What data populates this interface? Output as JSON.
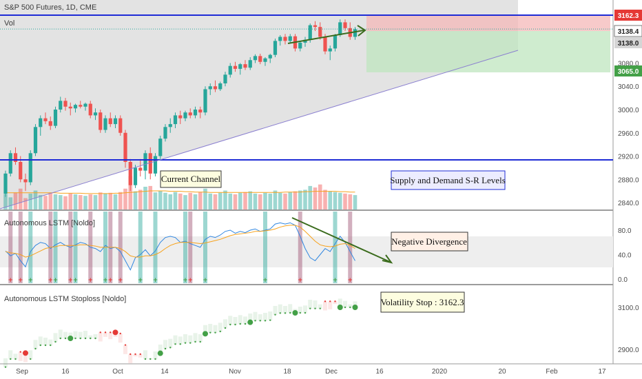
{
  "header": {
    "title": "S&P 500 Futures, 1D, CME",
    "volume_label": "Vol"
  },
  "colors": {
    "up": "#26a69a",
    "down": "#ef5350",
    "level_line": "#1e2bd6",
    "channel_line": "#8a7fd0",
    "ma_line": "#f7a21b",
    "osc_line": "#2f86e0",
    "arrow": "#3a6b1c",
    "stop_red": "#e53935",
    "stop_green": "#43a047",
    "stop_mixed": "#9b4d6e"
  },
  "annotations": {
    "current_channel": "Current Channel",
    "supply_demand": "Supply and Demand S-R Levels",
    "negative_divergence": "Negative Divergence",
    "volatility_stop": "Volatility Stop : 3162.3"
  },
  "price_tags": {
    "resistance": "3162.3",
    "last_close": "3138.4",
    "dotted_level": "3138.0",
    "target": "3065.0"
  },
  "panes": {
    "oscillator_title": "Autonomous LSTM [Noldo]",
    "stoploss_title": "Autonomous LSTM Stoploss [Noldo]"
  },
  "axes": {
    "price_ticks": [
      "3080.0",
      "3040.0",
      "3000.0",
      "2960.0",
      "2920.0",
      "2880.0",
      "2840.0"
    ],
    "osc_ticks": [
      "80.0",
      "40.0",
      "0.0"
    ],
    "stop_ticks": [
      "3100.0",
      "2900.0"
    ],
    "date_ticks": [
      "Sep",
      "16",
      "Oct",
      "14",
      "Nov",
      "18",
      "Dec",
      "16",
      "2020",
      "20",
      "Feb",
      "17"
    ]
  },
  "chart_data": [
    {
      "type": "candlestick",
      "title": "S&P 500 Futures, 1D, CME",
      "x_start": "2019-08-29",
      "ylim": [
        2820,
        3175
      ],
      "candles": [
        [
          2855,
          2895,
          2850,
          2890
        ],
        [
          2890,
          2930,
          2885,
          2925
        ],
        [
          2925,
          2935,
          2905,
          2910
        ],
        [
          2910,
          2920,
          2875,
          2880
        ],
        [
          2880,
          2890,
          2860,
          2875
        ],
        [
          2875,
          2930,
          2870,
          2925
        ],
        [
          2925,
          2975,
          2920,
          2970
        ],
        [
          2970,
          2990,
          2955,
          2985
        ],
        [
          2985,
          2995,
          2975,
          2980
        ],
        [
          2980,
          2988,
          2965,
          2972
        ],
        [
          2972,
          3005,
          2968,
          3000
        ],
        [
          3000,
          3022,
          2995,
          3015
        ],
        [
          3015,
          3020,
          2998,
          3005
        ],
        [
          3005,
          3012,
          2990,
          3002
        ],
        [
          3002,
          3010,
          2995,
          3008
        ],
        [
          3008,
          3015,
          3002,
          3005
        ],
        [
          3005,
          3012,
          2998,
          3010
        ],
        [
          3010,
          3015,
          2985,
          2990
        ],
        [
          2990,
          3002,
          2982,
          2995
        ],
        [
          2995,
          3000,
          2960,
          2965
        ],
        [
          2965,
          2990,
          2960,
          2985
        ],
        [
          2985,
          2995,
          2970,
          2975
        ],
        [
          2975,
          2990,
          2968,
          2985
        ],
        [
          2985,
          2990,
          2955,
          2960
        ],
        [
          2960,
          2965,
          2900,
          2910
        ],
        [
          2910,
          2915,
          2860,
          2870
        ],
        [
          2870,
          2905,
          2865,
          2900
        ],
        [
          2900,
          2915,
          2885,
          2895
        ],
        [
          2895,
          2930,
          2880,
          2925
        ],
        [
          2925,
          2935,
          2880,
          2890
        ],
        [
          2890,
          2925,
          2885,
          2920
        ],
        [
          2920,
          2955,
          2915,
          2950
        ],
        [
          2950,
          2975,
          2945,
          2970
        ],
        [
          2970,
          2985,
          2960,
          2975
        ],
        [
          2975,
          2995,
          2968,
          2990
        ],
        [
          2990,
          2998,
          2975,
          2985
        ],
        [
          2985,
          2998,
          2980,
          2995
        ],
        [
          2995,
          3002,
          2985,
          2990
        ],
        [
          2990,
          3005,
          2985,
          3000
        ],
        [
          3000,
          3005,
          2985,
          2995
        ],
        [
          2995,
          3040,
          2990,
          3035
        ],
        [
          3035,
          3045,
          3025,
          3040
        ],
        [
          3040,
          3050,
          3030,
          3035
        ],
        [
          3035,
          3048,
          3032,
          3045
        ],
        [
          3045,
          3065,
          3040,
          3060
        ],
        [
          3060,
          3080,
          3055,
          3075
        ],
        [
          3075,
          3082,
          3065,
          3070
        ],
        [
          3070,
          3080,
          3060,
          3078
        ],
        [
          3078,
          3085,
          3068,
          3072
        ],
        [
          3072,
          3090,
          3068,
          3085
        ],
        [
          3085,
          3095,
          3080,
          3092
        ],
        [
          3092,
          3096,
          3078,
          3082
        ],
        [
          3082,
          3090,
          3075,
          3088
        ],
        [
          3088,
          3096,
          3080,
          3094
        ],
        [
          3094,
          3122,
          3090,
          3118
        ],
        [
          3118,
          3128,
          3110,
          3125
        ],
        [
          3125,
          3130,
          3112,
          3118
        ],
        [
          3118,
          3130,
          3115,
          3126
        ],
        [
          3126,
          3130,
          3100,
          3105
        ],
        [
          3105,
          3118,
          3100,
          3115
        ],
        [
          3115,
          3125,
          3108,
          3120
        ],
        [
          3120,
          3148,
          3115,
          3145
        ],
        [
          3145,
          3152,
          3135,
          3142
        ],
        [
          3142,
          3150,
          3120,
          3125
        ],
        [
          3125,
          3130,
          3095,
          3100
        ],
        [
          3100,
          3110,
          3085,
          3105
        ],
        [
          3105,
          3130,
          3100,
          3128
        ],
        [
          3128,
          3155,
          3125,
          3150
        ],
        [
          3150,
          3155,
          3135,
          3140
        ],
        [
          3140,
          3150,
          3120,
          3125
        ],
        [
          3125,
          3142,
          3120,
          3138
        ]
      ],
      "volume": [
        40,
        32,
        45,
        55,
        30,
        42,
        50,
        38,
        36,
        44,
        40,
        38,
        35,
        42,
        40,
        38,
        36,
        40,
        38,
        45,
        42,
        44,
        40,
        46,
        55,
        88,
        48,
        52,
        60,
        62,
        45,
        50,
        44,
        40,
        46,
        42,
        38,
        44,
        40,
        46,
        55,
        42,
        40,
        44,
        50,
        42,
        40,
        44,
        46,
        48,
        42,
        40,
        44,
        42,
        50,
        44,
        42,
        46,
        48,
        50,
        52,
        62,
        58,
        66,
        52,
        48,
        46,
        44,
        42,
        40,
        38
      ],
      "volume_ma": [
        44,
        44,
        44,
        44,
        44,
        44,
        44,
        44,
        44,
        44,
        44,
        43,
        43,
        43,
        43,
        43,
        42,
        42,
        42,
        42,
        42,
        42,
        43,
        43,
        44,
        45,
        46,
        47,
        48,
        49,
        49,
        49,
        49,
        48,
        48,
        48,
        47,
        47,
        46,
        46,
        46,
        45,
        45,
        45,
        45,
        45,
        45,
        45,
        45,
        45,
        45,
        45,
        45,
        45,
        45,
        45,
        46,
        46,
        46,
        46,
        47,
        47,
        48,
        48,
        48,
        48,
        48,
        47,
        47,
        46,
        46
      ],
      "levels": {
        "resistance": 3162.3,
        "last_close": 3138.4,
        "support_blue": 2913.5,
        "target": 3065.0
      }
    },
    {
      "type": "line",
      "title": "Autonomous LSTM [Noldo]",
      "ylim": [
        -10,
        100
      ],
      "series": [
        {
          "values": [
            46,
            38,
            42,
            30,
            20,
            45,
            55,
            60,
            58,
            50,
            56,
            60,
            55,
            52,
            56,
            60,
            58,
            52,
            50,
            45,
            55,
            50,
            52,
            45,
            30,
            15,
            35,
            40,
            48,
            38,
            46,
            60,
            68,
            70,
            68,
            60,
            62,
            58,
            55,
            52,
            65,
            70,
            68,
            72,
            78,
            80,
            75,
            78,
            76,
            80,
            82,
            78,
            80,
            82,
            90,
            92,
            90,
            92,
            88,
            70,
            50,
            35,
            30,
            40,
            50,
            45,
            58,
            70,
            60,
            45,
            30
          ]
        },
        {
          "values": [
            45,
            43,
            42,
            40,
            36,
            38,
            42,
            46,
            50,
            52,
            53,
            55,
            55,
            55,
            55,
            56,
            56,
            55,
            54,
            52,
            52,
            52,
            52,
            50,
            45,
            38,
            36,
            36,
            38,
            38,
            40,
            44,
            50,
            55,
            58,
            60,
            60,
            60,
            59,
            58,
            59,
            61,
            63,
            65,
            68,
            71,
            73,
            74,
            75,
            76,
            78,
            78,
            79,
            80,
            82,
            85,
            87,
            88,
            88,
            85,
            78,
            70,
            62,
            56,
            54,
            53,
            54,
            57,
            58,
            55,
            50
          ]
        }
      ]
    },
    {
      "type": "scatter",
      "title": "Autonomous LSTM Stoploss [Noldo]",
      "ylim": [
        2860,
        3190
      ],
      "last_stop": 3162.3
    }
  ]
}
